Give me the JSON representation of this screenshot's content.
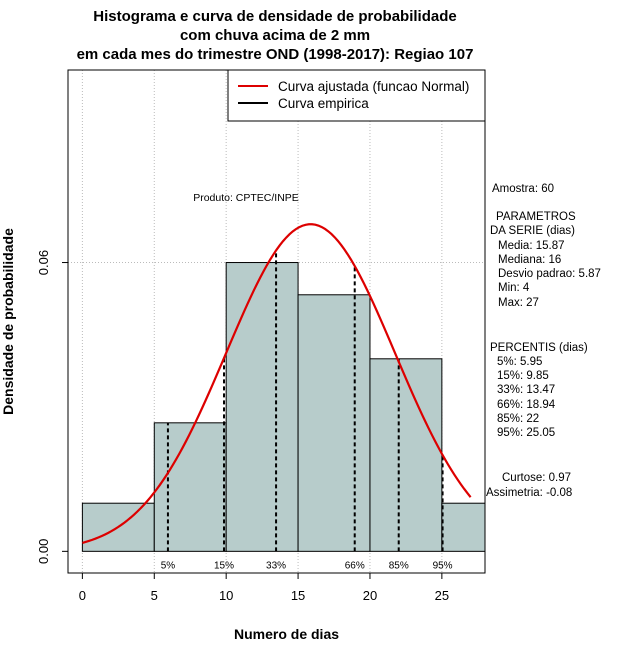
{
  "chart_data": {
    "type": "bar",
    "title_lines": [
      "Histograma e curva de densidade de probabilidade",
      "com chuva acima de 2 mm",
      "em cada mes do trimestre OND (1998-2017): Regiao 107"
    ],
    "xlabel": "Numero de dias",
    "ylabel": "Densidade de probabilidade",
    "xlim": [
      -1,
      28
    ],
    "ylim": [
      -0.0045,
      0.1
    ],
    "x_ticks": [
      0,
      5,
      10,
      15,
      20,
      25
    ],
    "x_tick_labels": [
      "0",
      "5",
      "10",
      "15",
      "20",
      "25"
    ],
    "y_ticks": [
      0.0,
      0.06
    ],
    "y_tick_labels": [
      "0.00",
      "0.06"
    ],
    "grid": true,
    "grid_x": [
      0,
      5,
      10,
      15,
      20,
      25
    ],
    "grid_y": [
      0.06,
      0.1
    ],
    "bins": [
      {
        "x0": 0,
        "x1": 5,
        "density": 0.01
      },
      {
        "x0": 5,
        "x1": 10,
        "density": 0.0267
      },
      {
        "x0": 10,
        "x1": 15,
        "density": 0.06
      },
      {
        "x0": 15,
        "x1": 20,
        "density": 0.0533
      },
      {
        "x0": 20,
        "x1": 25,
        "density": 0.04
      },
      {
        "x0": 25,
        "x1": 28,
        "density": 0.01
      }
    ],
    "normal_fit": {
      "mean": 15.87,
      "sd": 5.87,
      "x_range": [
        0,
        27
      ]
    },
    "percentile_lines": [
      {
        "label": "5%",
        "x": 5.95
      },
      {
        "label": "15%",
        "x": 9.85
      },
      {
        "label": "33%",
        "x": 13.47
      },
      {
        "label": "66%",
        "x": 18.94
      },
      {
        "label": "85%",
        "x": 22
      },
      {
        "label": "95%",
        "x": 25.05
      }
    ],
    "legend": {
      "position": "top-right",
      "entries": [
        {
          "label": "Curva ajustada (funcao Normal)",
          "color": "#dd0000"
        },
        {
          "label": "Curva empirica",
          "color": "#000000"
        }
      ]
    },
    "annotation": "Produto: CPTEC/INPE",
    "colors": {
      "bar_fill": "#b7cccb",
      "curve": "#dd0000",
      "grid": "#bbbbbb"
    }
  },
  "stats_panel": {
    "sample": "Amostra: 60",
    "params_header_1": "PARAMETROS",
    "params_header_2": "DA SERIE (dias)",
    "media": "Media: 15.87",
    "mediana": "Mediana: 16",
    "desvio": "Desvio padrao: 5.87",
    "min": "Min: 4",
    "max": "Max: 27",
    "percentis_header": "PERCENTIS (dias)",
    "p5": "5%: 5.95",
    "p15": "15%: 9.85",
    "p33": "33%: 13.47",
    "p66": "66%: 18.94",
    "p85": "85%: 22",
    "p95": "95%: 25.05",
    "curtose": "Curtose: 0.97",
    "assimetria": "Assimetria: -0.08"
  }
}
